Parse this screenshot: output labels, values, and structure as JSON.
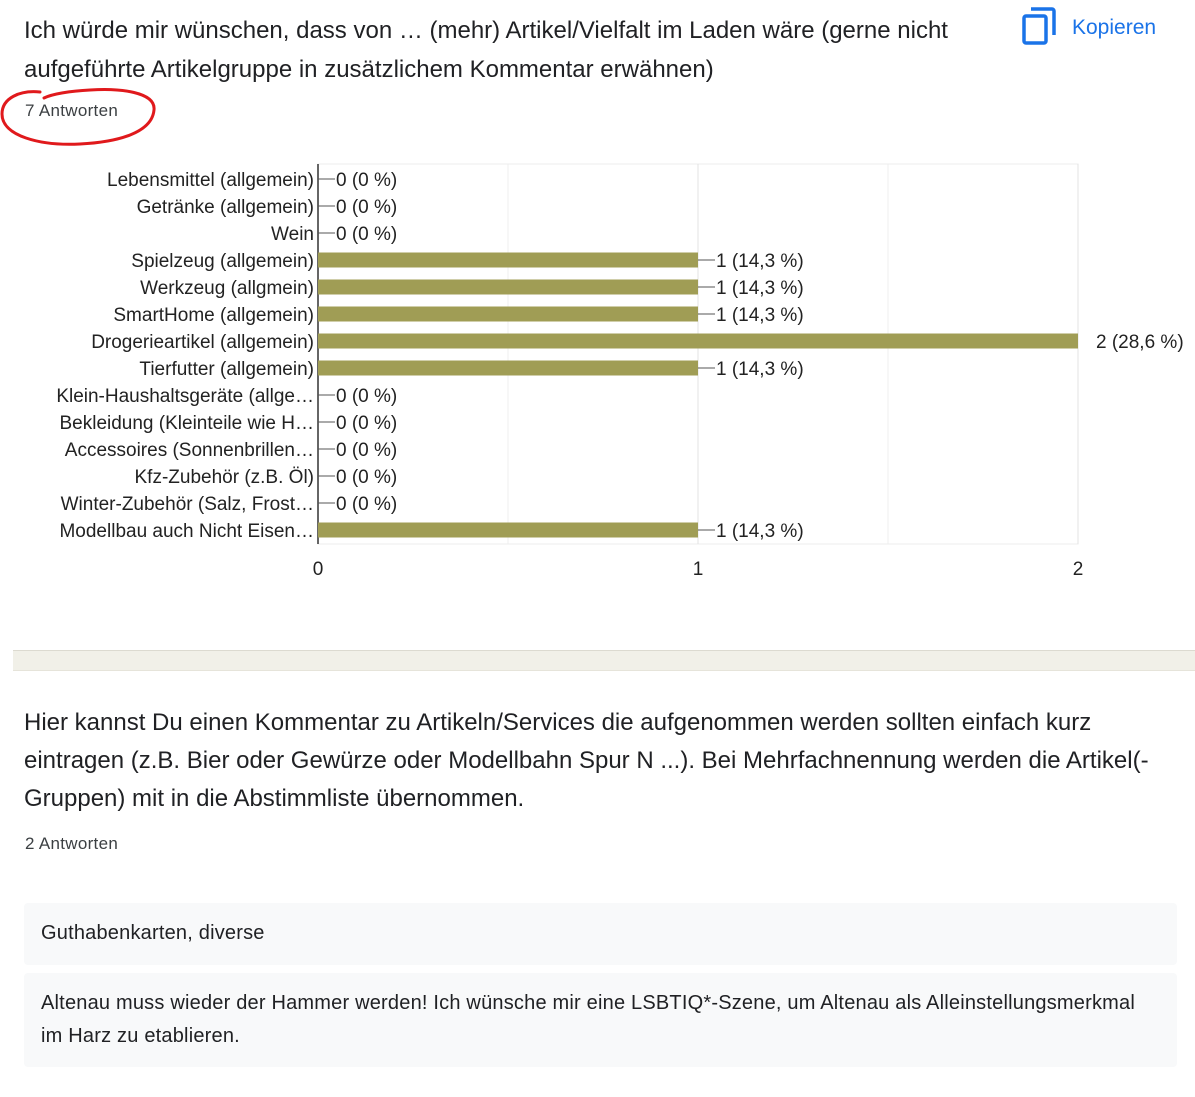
{
  "question1": {
    "title": "Ich würde mir wünschen, dass von … (mehr) Artikel/Vielfalt im Laden wäre (gerne nicht aufgeführte Artikelgruppe in zusätzlichem Kommentar erwähnen)",
    "response_count": "7 Antworten",
    "copy_label": "Kopieren",
    "copy_icon": "copy-icon",
    "annotation": "red-hand-drawn-circle"
  },
  "chart_data": {
    "type": "bar",
    "orientation": "horizontal",
    "categories": [
      "Lebensmittel (allgemein)",
      "Getränke (allgemein)",
      "Wein",
      "Spielzeug (allgemein)",
      "Werkzeug (allgmein)",
      "SmartHome (allgemein)",
      "Drogerieartikel (allgemein)",
      "Tierfutter (allgemein)",
      "Klein-Haushaltsgeräte (allge…",
      "Bekleidung (Kleinteile wie H…",
      "Accessoires (Sonnenbrillen…",
      "Kfz-Zubehör (z.B. Öl)",
      "Winter-Zubehör (Salz, Frost…",
      "Modellbau auch Nicht Eisen…"
    ],
    "values": [
      0,
      0,
      0,
      1,
      1,
      1,
      2,
      1,
      0,
      0,
      0,
      0,
      0,
      1
    ],
    "value_labels": [
      "0 (0 %)",
      "0 (0 %)",
      "0 (0 %)",
      "1 (14,3 %)",
      "1 (14,3 %)",
      "1 (14,3 %)",
      "2 (28,6 %)",
      "1 (14,3 %)",
      "0 (0 %)",
      "0 (0 %)",
      "0 (0 %)",
      "0 (0 %)",
      "0 (0 %)",
      "1 (14,3 %)"
    ],
    "xlim": [
      0,
      2
    ],
    "xticks": [
      "0",
      "1",
      "2"
    ],
    "grid": true,
    "bar_color": "#a09d55",
    "title": "",
    "xlabel": "",
    "ylabel": ""
  },
  "question2": {
    "title": "Hier kannst Du einen Kommentar zu Artikeln/Services die aufgenommen werden sollten einfach kurz eintragen (z.B. Bier oder Gewürze oder Modellbahn Spur N ...). Bei Mehrfachnennung werden die Artikel(-Gruppen) mit in die Abstimmliste übernommen.",
    "response_count": "2 Antworten",
    "answers": [
      "Guthabenkarten, diverse",
      "Altenau muss wieder der Hammer werden! Ich wünsche mir eine LSBTIQ*-Szene, um Altenau als Alleinstellungsmerkmal im Harz zu etablieren."
    ]
  },
  "colors": {
    "accent": "#1a73e8",
    "bar": "#a09d55",
    "annotation": "#e0191c"
  }
}
